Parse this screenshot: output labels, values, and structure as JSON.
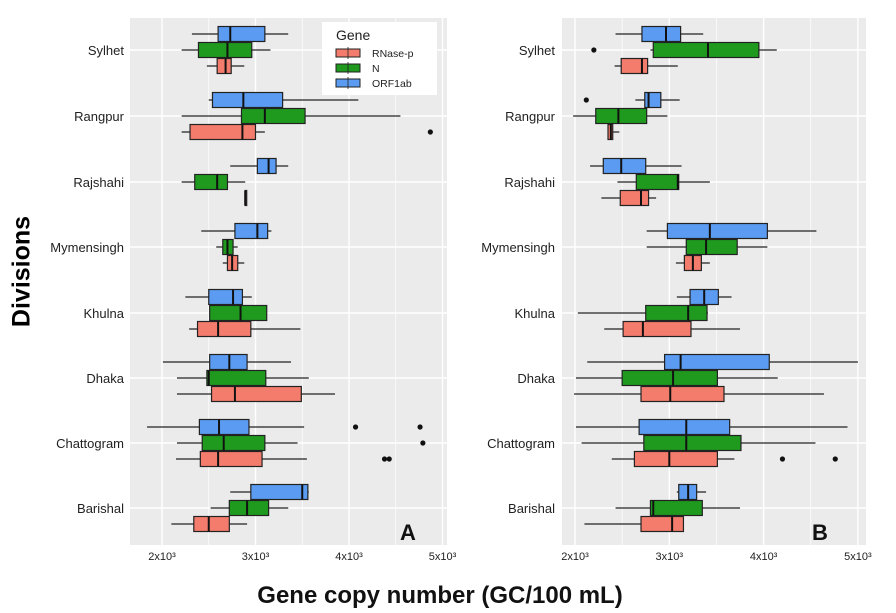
{
  "chart_data": [
    {
      "type": "boxplot",
      "panel_label": "A",
      "orientation": "horizontal",
      "xlim": [
        1660,
        5050
      ],
      "xticks": [
        2000,
        3000,
        4000,
        5000
      ],
      "xtick_labels": [
        "2x10³",
        "3x10³",
        "4x10³",
        "5x10³"
      ],
      "categories": [
        "Sylhet",
        "Rangpur",
        "Rajshahi",
        "Mymensingh",
        "Khulna",
        "Dhaka",
        "Chattogram",
        "Barishal"
      ],
      "legend": {
        "title": "Gene",
        "placement": "top-right",
        "entries": [
          "RNase-p",
          "N",
          "ORF1ab"
        ]
      },
      "series": [
        {
          "name": "ORF1ab",
          "color": "#5B9CF2",
          "boxes": [
            {
              "whislo": 2320,
              "q1": 2600,
              "med": 2730,
              "q3": 3100,
              "whishi": 3350
            },
            {
              "whislo": 2500,
              "q1": 2540,
              "med": 2870,
              "q3": 3290,
              "whishi": 4100
            },
            {
              "whislo": 2730,
              "q1": 3020,
              "med": 3140,
              "q3": 3220,
              "whishi": 3350
            },
            {
              "whislo": 2420,
              "q1": 2780,
              "med": 3020,
              "q3": 3130,
              "whishi": 3170
            },
            {
              "whislo": 2250,
              "q1": 2500,
              "med": 2760,
              "q3": 2860,
              "whishi": 2960
            },
            {
              "whislo": 2010,
              "q1": 2510,
              "med": 2720,
              "q3": 2910,
              "whishi": 3380
            },
            {
              "whislo": 1840,
              "q1": 2400,
              "med": 2610,
              "q3": 2930,
              "whishi": 3520
            },
            {
              "whislo": 2730,
              "q1": 2950,
              "med": 3500,
              "q3": 3560,
              "whishi": 3570
            }
          ],
          "outliers": [
            [],
            [],
            [],
            [],
            [],
            [],
            [
              4070,
              4760
            ],
            []
          ]
        },
        {
          "name": "N",
          "color": "#1F9A1F",
          "boxes": [
            {
              "whislo": 2210,
              "q1": 2390,
              "med": 2700,
              "q3": 2960,
              "whishi": 3160
            },
            {
              "whislo": 2210,
              "q1": 2850,
              "med": 3100,
              "q3": 3530,
              "whishi": 4550
            },
            {
              "whislo": 2210,
              "q1": 2350,
              "med": 2590,
              "q3": 2700,
              "whishi": 2890
            },
            {
              "whislo": 2580,
              "q1": 2650,
              "med": 2700,
              "q3": 2760,
              "whishi": 2810
            },
            {
              "whislo": 2510,
              "q1": 2510,
              "med": 2840,
              "q3": 3120,
              "whishi": 3120
            },
            {
              "whislo": 2160,
              "q1": 2480,
              "med": 2500,
              "q3": 3110,
              "whishi": 3570
            },
            {
              "whislo": 2160,
              "q1": 2430,
              "med": 2660,
              "q3": 3100,
              "whishi": 3450
            },
            {
              "whislo": 2520,
              "q1": 2720,
              "med": 2910,
              "q3": 3140,
              "whishi": 3350
            }
          ],
          "outliers": [
            [],
            [],
            [],
            [],
            [],
            [],
            [
              4790
            ],
            []
          ]
        },
        {
          "name": "RNase-p",
          "color": "#F47C6C",
          "boxes": [
            {
              "whislo": 2480,
              "q1": 2590,
              "med": 2680,
              "q3": 2740,
              "whishi": 2880
            },
            {
              "whislo": 2210,
              "q1": 2300,
              "med": 2860,
              "q3": 3000,
              "whishi": 3100
            },
            {
              "whislo": 2890,
              "q1": 2890,
              "med": 2890,
              "q3": 2890,
              "whishi": 2890
            },
            {
              "whislo": 2650,
              "q1": 2700,
              "med": 2750,
              "q3": 2810,
              "whishi": 2880
            },
            {
              "whislo": 2290,
              "q1": 2380,
              "med": 2600,
              "q3": 2950,
              "whishi": 3480
            },
            {
              "whislo": 2160,
              "q1": 2530,
              "med": 2780,
              "q3": 3490,
              "whishi": 3850
            },
            {
              "whislo": 2150,
              "q1": 2410,
              "med": 2600,
              "q3": 3070,
              "whishi": 3550
            },
            {
              "whislo": 2100,
              "q1": 2340,
              "med": 2500,
              "q3": 2720,
              "whishi": 2910
            }
          ],
          "outliers": [
            [],
            [
              4870
            ],
            [],
            [],
            [],
            [],
            [
              4380,
              4430
            ],
            []
          ]
        }
      ]
    },
    {
      "type": "boxplot",
      "panel_label": "B",
      "orientation": "horizontal",
      "xlim": [
        1870,
        5090
      ],
      "xticks": [
        2000,
        3000,
        4000,
        5000
      ],
      "xtick_labels": [
        "2x10³",
        "3x10³",
        "4x10³",
        "5x10³"
      ],
      "categories": [
        "Sylhet",
        "Rangpur",
        "Rajshahi",
        "Mymensingh",
        "Khulna",
        "Dhaka",
        "Chattogram",
        "Barishal"
      ],
      "series": [
        {
          "name": "ORF1ab",
          "color": "#5B9CF2",
          "boxes": [
            {
              "whislo": 2430,
              "q1": 2710,
              "med": 2965,
              "q3": 3120,
              "whishi": 3360
            },
            {
              "whislo": 2640,
              "q1": 2740,
              "med": 2780,
              "q3": 2910,
              "whishi": 3110
            },
            {
              "whislo": 2160,
              "q1": 2300,
              "med": 2490,
              "q3": 2750,
              "whishi": 3130
            },
            {
              "whislo": 2760,
              "q1": 2980,
              "med": 3430,
              "q3": 4040,
              "whishi": 4560
            },
            {
              "whislo": 3080,
              "q1": 3220,
              "med": 3370,
              "q3": 3520,
              "whishi": 3660
            },
            {
              "whislo": 2130,
              "q1": 2950,
              "med": 3120,
              "q3": 4060,
              "whishi": 5000
            },
            {
              "whislo": 2010,
              "q1": 2680,
              "med": 3180,
              "q3": 3640,
              "whishi": 4890
            },
            {
              "whislo": 3080,
              "q1": 3100,
              "med": 3200,
              "q3": 3290,
              "whishi": 3390
            }
          ],
          "outliers": [
            [],
            [
              2120
            ],
            [],
            [],
            [],
            [],
            [],
            []
          ]
        },
        {
          "name": "N",
          "color": "#1F9A1F",
          "boxes": [
            {
              "whislo": 2800,
              "q1": 2830,
              "med": 3410,
              "q3": 3950,
              "whishi": 4140
            },
            {
              "whislo": 1980,
              "q1": 2220,
              "med": 2460,
              "q3": 2760,
              "whishi": 2980
            },
            {
              "whislo": 2450,
              "q1": 2650,
              "med": 3090,
              "q3": 3100,
              "whishi": 3430
            },
            {
              "whislo": 2760,
              "q1": 3180,
              "med": 3390,
              "q3": 3720,
              "whishi": 4040
            },
            {
              "whislo": 2030,
              "q1": 2750,
              "med": 3200,
              "q3": 3400,
              "whishi": 3410
            },
            {
              "whislo": 2010,
              "q1": 2500,
              "med": 3040,
              "q3": 3510,
              "whishi": 4150
            },
            {
              "whislo": 2070,
              "q1": 2730,
              "med": 3180,
              "q3": 3760,
              "whishi": 4550
            },
            {
              "whislo": 2430,
              "q1": 2800,
              "med": 2830,
              "q3": 3350,
              "whishi": 3750
            }
          ],
          "outliers": [
            [
              2200
            ],
            [],
            [],
            [],
            [],
            [],
            [],
            []
          ]
        },
        {
          "name": "RNase-p",
          "color": "#F47C6C",
          "boxes": [
            {
              "whislo": 2420,
              "q1": 2490,
              "med": 2710,
              "q3": 2770,
              "whishi": 3090
            },
            {
              "whislo": 2350,
              "q1": 2350,
              "med": 2380,
              "q3": 2400,
              "whishi": 2470
            },
            {
              "whislo": 2280,
              "q1": 2480,
              "med": 2700,
              "q3": 2780,
              "whishi": 2860
            },
            {
              "whislo": 3070,
              "q1": 3160,
              "med": 3250,
              "q3": 3340,
              "whishi": 3430
            },
            {
              "whislo": 2310,
              "q1": 2510,
              "med": 2720,
              "q3": 3230,
              "whishi": 3750
            },
            {
              "whislo": 1990,
              "q1": 2700,
              "med": 3010,
              "q3": 3580,
              "whishi": 4640
            },
            {
              "whislo": 2390,
              "q1": 2630,
              "med": 3000,
              "q3": 3510,
              "whishi": 3690
            },
            {
              "whislo": 2100,
              "q1": 2700,
              "med": 3030,
              "q3": 3150,
              "whishi": 3150
            }
          ],
          "outliers": [
            [],
            [],
            [],
            [],
            [],
            [],
            [
              4200,
              4760
            ],
            []
          ]
        }
      ]
    }
  ],
  "ylabel": "Divisions",
  "xlabel": "Gene copy number (GC/100 mL)"
}
